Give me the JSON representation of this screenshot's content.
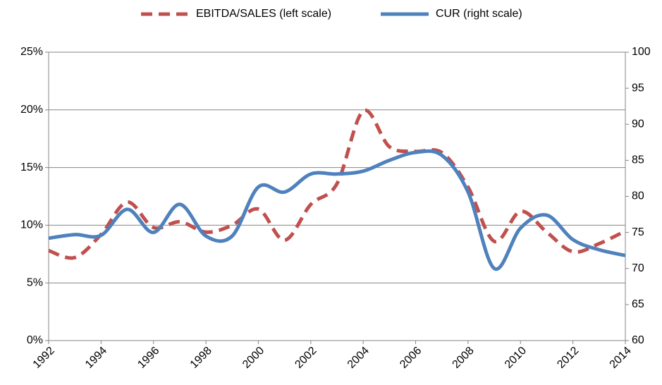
{
  "chart_data": {
    "type": "line",
    "x": [
      1992,
      1993,
      1994,
      1995,
      1996,
      1997,
      1998,
      1999,
      2000,
      2001,
      2002,
      2003,
      2004,
      2005,
      2006,
      2007,
      2008,
      2009,
      2010,
      2011,
      2012,
      2013,
      2014
    ],
    "xlim": [
      1992,
      2014
    ],
    "xticks": [
      1992,
      1994,
      1996,
      1998,
      2000,
      2002,
      2004,
      2006,
      2008,
      2010,
      2012,
      2014
    ],
    "ylim": [
      0,
      25
    ],
    "yticks": [
      {
        "value": 0,
        "label": "0%"
      },
      {
        "value": 5,
        "label": "5%"
      },
      {
        "value": 10,
        "label": "10%"
      },
      {
        "value": 15,
        "label": "15%"
      },
      {
        "value": 20,
        "label": "20%"
      },
      {
        "value": 25,
        "label": "25%"
      }
    ],
    "y2lim": [
      60,
      100
    ],
    "y2ticks": [
      60,
      65,
      70,
      75,
      80,
      85,
      90,
      95,
      100
    ],
    "grid": true,
    "legend": "top",
    "series": [
      {
        "name": "EBITDA/SALES (left scale)",
        "color": "#c0504d",
        "dashed": true,
        "values": [
          7.8,
          7.2,
          9.2,
          12.0,
          9.8,
          10.3,
          9.4,
          10.0,
          11.4,
          8.7,
          11.8,
          13.6,
          19.9,
          16.8,
          16.4,
          16.3,
          13.3,
          8.6,
          11.2,
          9.4,
          7.7,
          8.4,
          9.5
        ]
      },
      {
        "name": "CUR (right scale)",
        "color": "#4f81bd",
        "axis": "y2",
        "values": [
          74.2,
          74.7,
          74.6,
          78.2,
          75.0,
          78.9,
          74.5,
          74.5,
          81.3,
          80.6,
          83.1,
          83.1,
          83.5,
          85.0,
          86.1,
          85.7,
          80.6,
          70.0,
          75.6,
          77.4,
          74.0,
          72.6,
          71.8
        ]
      }
    ]
  }
}
